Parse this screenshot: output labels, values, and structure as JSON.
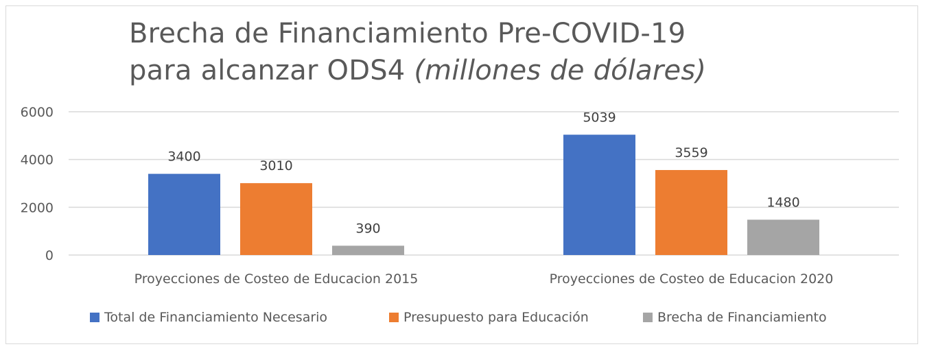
{
  "chart_data": {
    "type": "bar",
    "title": "Brecha de Financiamiento Pre-COVID-19",
    "title_line2": "para alcanzar ODS4",
    "title_italic": "(millones de dólares)",
    "categories": [
      "Proyecciones de Costeo de Educacion 2015",
      "Proyecciones de Costeo de Educacion 2020"
    ],
    "series": [
      {
        "name": "Total de Financiamiento Necesario",
        "color": "#4472c4",
        "values": [
          3400,
          5039
        ]
      },
      {
        "name": "Presupuesto para Educación",
        "color": "#ed7d31",
        "values": [
          3010,
          3559
        ]
      },
      {
        "name": "Brecha de Financiamiento",
        "color": "#a5a5a5",
        "values": [
          390,
          1480
        ]
      }
    ],
    "ylim": [
      0,
      6000
    ],
    "yticks": [
      0,
      2000,
      4000,
      6000
    ],
    "grid": true,
    "legend": "bottom"
  }
}
